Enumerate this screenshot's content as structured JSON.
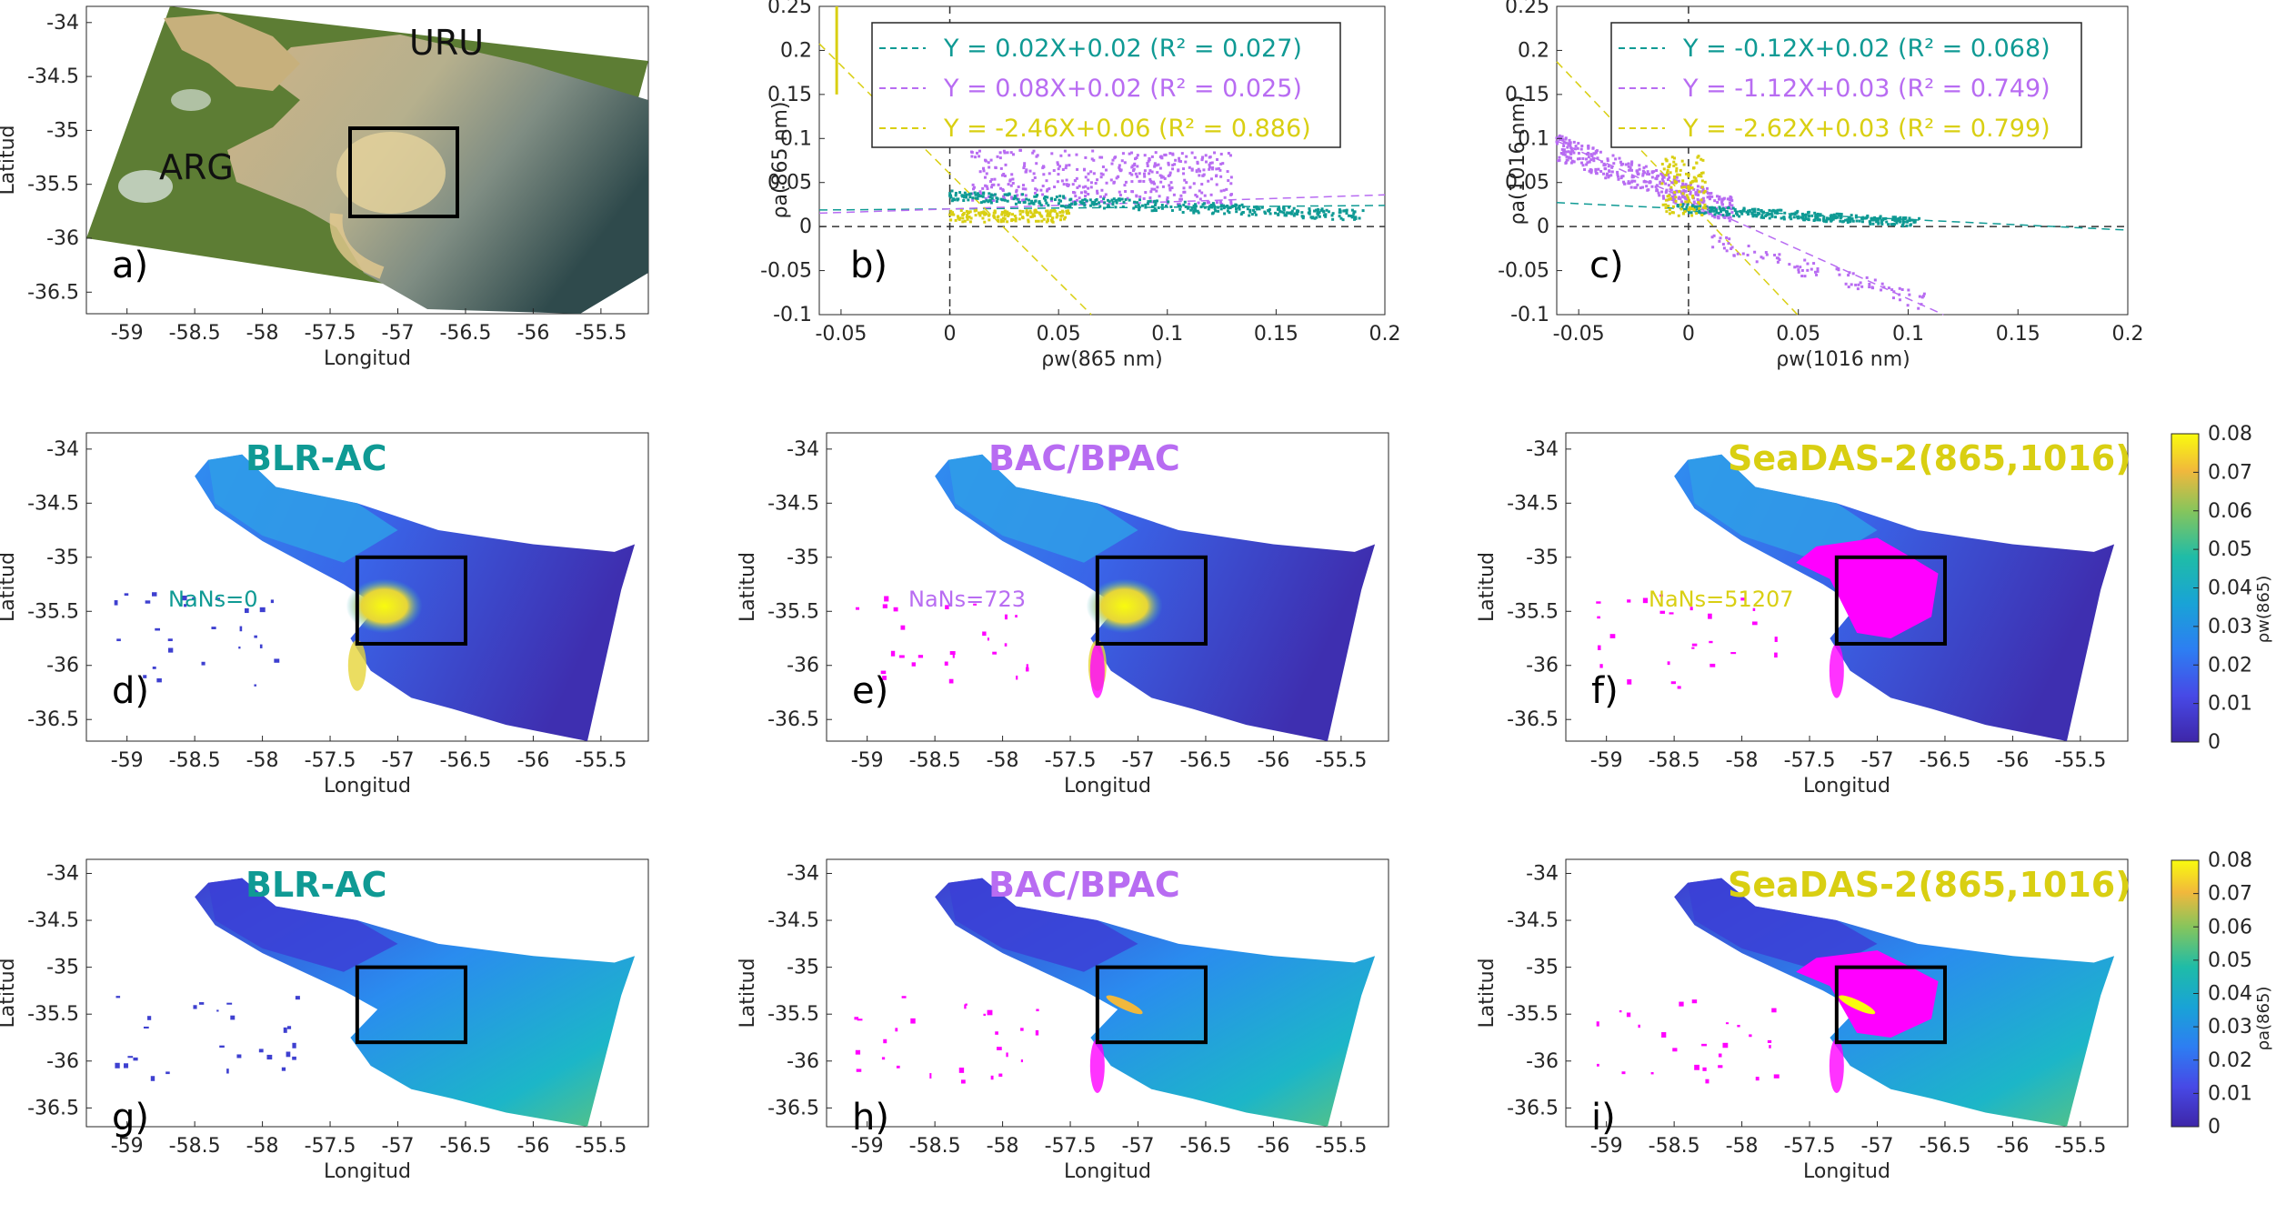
{
  "colors": {
    "teal": "#0f9a94",
    "purple": "#b86cf2",
    "yellow": "#d9cf12",
    "magenta": "#ff00ff",
    "parula_low": "#3e26a8",
    "parula_high": "#f9fb0e",
    "land": "#5d7d34",
    "sediment": "#d9c596"
  },
  "common": {
    "xlabel_map": "Longitud",
    "ylabel_map": "Latitud",
    "map_xticks": [
      "-59",
      "-58.5",
      "-58",
      "-57.5",
      "-57",
      "-56.5",
      "-56",
      "-55.5"
    ],
    "map_yticks": [
      "-34",
      "-34.5",
      "-35",
      "-35.5",
      "-36",
      "-36.5"
    ]
  },
  "panels": {
    "a": {
      "label": "a)",
      "uru": "URU",
      "arg": "ARG"
    },
    "b": {
      "label": "b)"
    },
    "c": {
      "label": "c)"
    },
    "d": {
      "label": "d)",
      "method": "BLR-AC",
      "nans": "NaNs=0"
    },
    "e": {
      "label": "e)",
      "method": "BAC/BPAC",
      "nans": "NaNs=723"
    },
    "f": {
      "label": "f)",
      "method": "SeaDAS-2(865,1016)",
      "nans": "NaNs=51207"
    },
    "g": {
      "label": "g)",
      "method": "BLR-AC"
    },
    "h": {
      "label": "h)",
      "method": "BAC/BPAC"
    },
    "i": {
      "label": "i)",
      "method": "SeaDAS-2(865,1016)"
    }
  },
  "colorbars": [
    {
      "label": "ρw(865)",
      "ticks": [
        "0.08",
        "0.07",
        "0.06",
        "0.05",
        "0.04",
        "0.03",
        "0.02",
        "0.01",
        "0"
      ],
      "range": [
        0,
        0.08
      ]
    },
    {
      "label": "ρa(865)",
      "ticks": [
        "0.08",
        "0.07",
        "0.06",
        "0.05",
        "0.04",
        "0.03",
        "0.02",
        "0.01",
        "0"
      ],
      "range": [
        0,
        0.08
      ]
    }
  ],
  "chart_data": [
    {
      "panel": "b",
      "type": "scatter",
      "xlabel": "ρw(865 nm)",
      "ylabel": "ρa(865 nm)",
      "xlim": [
        -0.06,
        0.2
      ],
      "ylim": [
        -0.1,
        0.25
      ],
      "xticks": [
        "-0.05",
        "0",
        "0.05",
        "0.1",
        "0.15",
        "0.2"
      ],
      "yticks": [
        "0.25",
        "0.2",
        "0.15",
        "0.1",
        "0.05",
        "0",
        "-0.05",
        "-0.1"
      ],
      "legend": [
        {
          "text": "Y = 0.02X+0.02 (R² = 0.027)",
          "slope": 0.02,
          "intercept": 0.02,
          "r2": 0.027,
          "color": "#0f9a94"
        },
        {
          "text": "Y = 0.08X+0.02 (R² = 0.025)",
          "slope": 0.08,
          "intercept": 0.02,
          "r2": 0.025,
          "color": "#b86cf2"
        },
        {
          "text": "Y = -2.46X+0.06 (R² = 0.886)",
          "slope": -2.46,
          "intercept": 0.06,
          "r2": 0.886,
          "color": "#d9cf12"
        }
      ]
    },
    {
      "panel": "c",
      "type": "scatter",
      "xlabel": "ρw(1016 nm)",
      "ylabel": "ρa(1016 nm)",
      "xlim": [
        -0.06,
        0.2
      ],
      "ylim": [
        -0.1,
        0.25
      ],
      "xticks": [
        "-0.05",
        "0",
        "0.05",
        "0.1",
        "0.15",
        "0.2"
      ],
      "yticks": [
        "0.25",
        "0.2",
        "0.15",
        "0.1",
        "0.05",
        "0",
        "-0.05",
        "-0.1"
      ],
      "legend": [
        {
          "text": "Y = -0.12X+0.02 (R² = 0.068)",
          "slope": -0.12,
          "intercept": 0.02,
          "r2": 0.068,
          "color": "#0f9a94"
        },
        {
          "text": "Y = -1.12X+0.03 (R² = 0.749)",
          "slope": -1.12,
          "intercept": 0.03,
          "r2": 0.749,
          "color": "#b86cf2"
        },
        {
          "text": "Y = -2.62X+0.03 (R² = 0.799)",
          "slope": -2.62,
          "intercept": 0.03,
          "r2": 0.799,
          "color": "#d9cf12"
        }
      ]
    }
  ]
}
